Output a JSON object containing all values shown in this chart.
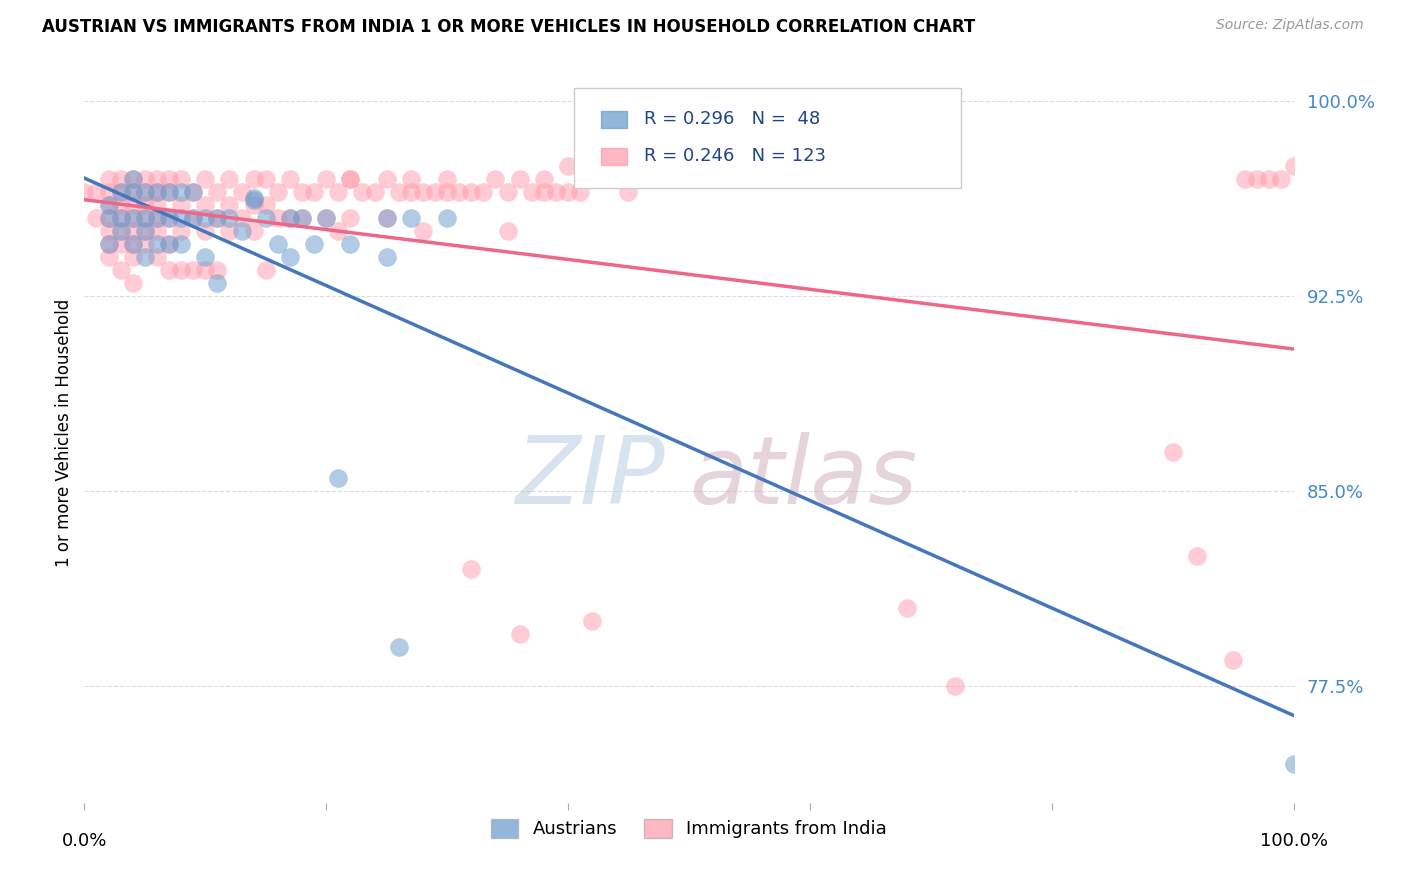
{
  "title": "AUSTRIAN VS IMMIGRANTS FROM INDIA 1 OR MORE VEHICLES IN HOUSEHOLD CORRELATION CHART",
  "source": "Source: ZipAtlas.com",
  "ylabel": "1 or more Vehicles in Household",
  "legend_austrians": "Austrians",
  "legend_india": "Immigrants from India",
  "r_austrians": 0.296,
  "n_austrians": 48,
  "r_india": 0.246,
  "n_india": 123,
  "xlim": [
    0.0,
    1.0
  ],
  "ylim": [
    73.0,
    101.5
  ],
  "blue_color": "#6699CC",
  "pink_color": "#FF99AA",
  "blue_line_color": "#4477BB",
  "pink_line_color": "#EE6688",
  "background_color": "#FFFFFF",
  "watermark_zip": "ZIP",
  "watermark_atlas": "atlas",
  "aus_x": [
    0.02,
    0.02,
    0.02,
    0.03,
    0.03,
    0.03,
    0.04,
    0.04,
    0.04,
    0.04,
    0.05,
    0.05,
    0.05,
    0.05,
    0.06,
    0.06,
    0.06,
    0.07,
    0.07,
    0.07,
    0.08,
    0.08,
    0.08,
    0.09,
    0.09,
    0.1,
    0.1,
    0.11,
    0.11,
    0.12,
    0.13,
    0.14,
    0.15,
    0.16,
    0.17,
    0.17,
    0.18,
    0.19,
    0.2,
    0.21,
    0.22,
    0.25,
    0.25,
    0.26,
    0.27,
    0.14,
    0.3,
    1.0
  ],
  "aus_y": [
    96.0,
    95.5,
    94.5,
    96.5,
    95.5,
    95.0,
    97.0,
    96.5,
    95.5,
    94.5,
    96.5,
    95.5,
    95.0,
    94.0,
    96.5,
    95.5,
    94.5,
    96.5,
    95.5,
    94.5,
    96.5,
    95.5,
    94.5,
    96.5,
    95.5,
    95.5,
    94.0,
    95.5,
    93.0,
    95.5,
    95.0,
    96.2,
    95.5,
    94.5,
    95.5,
    94.0,
    95.5,
    94.5,
    95.5,
    85.5,
    94.5,
    95.5,
    94.0,
    79.0,
    95.5,
    96.3,
    95.5,
    74.5
  ],
  "ind_x": [
    0.01,
    0.01,
    0.02,
    0.02,
    0.02,
    0.02,
    0.02,
    0.02,
    0.02,
    0.03,
    0.03,
    0.03,
    0.03,
    0.03,
    0.03,
    0.03,
    0.04,
    0.04,
    0.04,
    0.04,
    0.04,
    0.04,
    0.04,
    0.04,
    0.05,
    0.05,
    0.05,
    0.05,
    0.05,
    0.05,
    0.06,
    0.06,
    0.06,
    0.06,
    0.06,
    0.06,
    0.07,
    0.07,
    0.07,
    0.07,
    0.07,
    0.08,
    0.08,
    0.08,
    0.08,
    0.09,
    0.09,
    0.09,
    0.1,
    0.1,
    0.1,
    0.1,
    0.11,
    0.11,
    0.11,
    0.12,
    0.12,
    0.12,
    0.13,
    0.13,
    0.14,
    0.14,
    0.14,
    0.15,
    0.15,
    0.15,
    0.16,
    0.16,
    0.17,
    0.17,
    0.18,
    0.18,
    0.19,
    0.2,
    0.2,
    0.21,
    0.21,
    0.22,
    0.22,
    0.23,
    0.24,
    0.25,
    0.25,
    0.26,
    0.27,
    0.28,
    0.28,
    0.29,
    0.3,
    0.31,
    0.32,
    0.33,
    0.34,
    0.35,
    0.35,
    0.36,
    0.37,
    0.38,
    0.38,
    0.39,
    0.4,
    0.41,
    0.42,
    0.45,
    0.5,
    0.0,
    0.27,
    0.3,
    0.32,
    0.36,
    0.4,
    0.44,
    0.22,
    0.9,
    0.92,
    0.95,
    0.68,
    0.72,
    0.98,
    0.99,
    1.0,
    0.96,
    0.97
  ],
  "ind_y": [
    96.5,
    95.5,
    97.0,
    96.5,
    96.0,
    95.5,
    95.0,
    94.5,
    94.0,
    97.0,
    96.5,
    96.0,
    95.5,
    95.0,
    94.5,
    93.5,
    97.0,
    96.5,
    96.0,
    95.5,
    95.0,
    94.5,
    94.0,
    93.0,
    97.0,
    96.5,
    96.0,
    95.5,
    95.0,
    94.5,
    97.0,
    96.5,
    96.0,
    95.5,
    95.0,
    94.0,
    97.0,
    96.5,
    95.5,
    94.5,
    93.5,
    97.0,
    96.0,
    95.0,
    93.5,
    96.5,
    95.5,
    93.5,
    97.0,
    96.0,
    95.0,
    93.5,
    96.5,
    95.5,
    93.5,
    97.0,
    96.0,
    95.0,
    96.5,
    95.5,
    97.0,
    96.0,
    95.0,
    97.0,
    96.0,
    93.5,
    96.5,
    95.5,
    97.0,
    95.5,
    96.5,
    95.5,
    96.5,
    97.0,
    95.5,
    96.5,
    95.0,
    97.0,
    95.5,
    96.5,
    96.5,
    97.0,
    95.5,
    96.5,
    97.0,
    96.5,
    95.0,
    96.5,
    97.0,
    96.5,
    96.5,
    96.5,
    97.0,
    96.5,
    95.0,
    97.0,
    96.5,
    96.5,
    97.0,
    96.5,
    96.5,
    96.5,
    80.0,
    96.5,
    97.0,
    96.5,
    96.5,
    96.5,
    82.0,
    79.5,
    97.5,
    97.0,
    97.0,
    86.5,
    82.5,
    78.5,
    80.5,
    77.5,
    97.0,
    97.0,
    97.5,
    97.0,
    97.0
  ]
}
